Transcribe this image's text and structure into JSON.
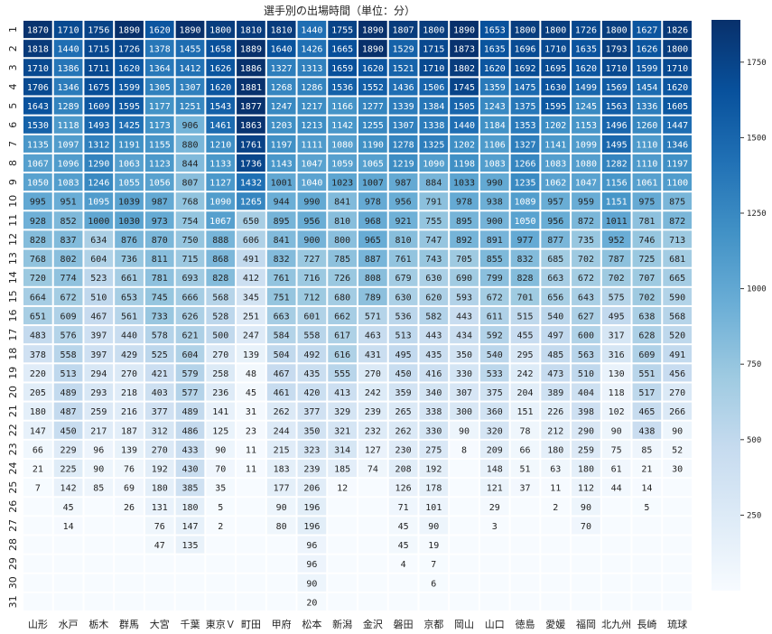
{
  "chart_data": {
    "type": "heatmap",
    "title": "選手別の出場時間（単位：分）",
    "x": [
      "山形",
      "水戸",
      "栃木",
      "群馬",
      "大宮",
      "千葉",
      "東京Ｖ",
      "町田",
      "甲府",
      "松本",
      "新潟",
      "金沢",
      "磐田",
      "京都",
      "岡山",
      "山口",
      "徳島",
      "愛媛",
      "福岡",
      "北九州",
      "長崎",
      "琉球"
    ],
    "y": [
      "1",
      "2",
      "3",
      "4",
      "5",
      "6",
      "7",
      "8",
      "9",
      "10",
      "11",
      "12",
      "13",
      "14",
      "15",
      "16",
      "17",
      "18",
      "19",
      "20",
      "21",
      "22",
      "23",
      "24",
      "25",
      "26",
      "27",
      "28",
      "29",
      "30",
      "31"
    ],
    "values": [
      [
        1870,
        1710,
        1756,
        1890,
        1620,
        1890,
        1800,
        1810,
        1810,
        1440,
        1755,
        1890,
        1807,
        1800,
        1890,
        1653,
        1800,
        1800,
        1726,
        1800,
        1627,
        1826
      ],
      [
        1818,
        1440,
        1715,
        1726,
        1378,
        1455,
        1658,
        1889,
        1640,
        1426,
        1665,
        1890,
        1529,
        1715,
        1873,
        1635,
        1696,
        1710,
        1635,
        1793,
        1626,
        1800
      ],
      [
        1710,
        1386,
        1711,
        1620,
        1364,
        1412,
        1626,
        1886,
        1327,
        1313,
        1659,
        1620,
        1521,
        1710,
        1802,
        1620,
        1692,
        1695,
        1620,
        1710,
        1599,
        1710
      ],
      [
        1706,
        1346,
        1675,
        1599,
        1305,
        1307,
        1620,
        1881,
        1268,
        1286,
        1536,
        1552,
        1436,
        1506,
        1745,
        1359,
        1475,
        1630,
        1499,
        1569,
        1454,
        1620
      ],
      [
        1643,
        1289,
        1609,
        1595,
        1177,
        1251,
        1543,
        1877,
        1247,
        1217,
        1166,
        1277,
        1339,
        1384,
        1505,
        1243,
        1375,
        1595,
        1245,
        1563,
        1336,
        1605
      ],
      [
        1530,
        1118,
        1493,
        1425,
        1173,
        906,
        1461,
        1863,
        1203,
        1213,
        1142,
        1255,
        1307,
        1338,
        1440,
        1184,
        1353,
        1202,
        1153,
        1496,
        1260,
        1447
      ],
      [
        1135,
        1097,
        1312,
        1191,
        1155,
        880,
        1210,
        1761,
        1197,
        1111,
        1080,
        1190,
        1278,
        1325,
        1202,
        1106,
        1327,
        1141,
        1099,
        1495,
        1110,
        1346
      ],
      [
        1067,
        1096,
        1290,
        1063,
        1123,
        844,
        1133,
        1736,
        1143,
        1047,
        1059,
        1065,
        1219,
        1090,
        1198,
        1083,
        1266,
        1083,
        1080,
        1282,
        1110,
        1197
      ],
      [
        1050,
        1083,
        1246,
        1055,
        1056,
        807,
        1127,
        1432,
        1001,
        1040,
        1023,
        1007,
        987,
        884,
        1033,
        990,
        1235,
        1062,
        1047,
        1156,
        1061,
        1100
      ],
      [
        995,
        951,
        1095,
        1039,
        987,
        768,
        1090,
        1265,
        944,
        990,
        841,
        978,
        956,
        791,
        978,
        938,
        1089,
        957,
        959,
        1151,
        975,
        875
      ],
      [
        928,
        852,
        1000,
        1030,
        973,
        754,
        1067,
        650,
        895,
        956,
        810,
        968,
        921,
        755,
        895,
        900,
        1050,
        956,
        872,
        1011,
        781,
        872
      ],
      [
        828,
        837,
        634,
        876,
        870,
        750,
        888,
        606,
        841,
        900,
        800,
        965,
        810,
        747,
        892,
        891,
        977,
        877,
        735,
        952,
        746,
        713
      ],
      [
        768,
        802,
        604,
        736,
        811,
        715,
        868,
        491,
        832,
        727,
        785,
        887,
        761,
        743,
        705,
        855,
        832,
        685,
        702,
        787,
        725,
        681
      ],
      [
        720,
        774,
        523,
        661,
        781,
        693,
        828,
        412,
        761,
        716,
        726,
        808,
        679,
        630,
        690,
        799,
        828,
        663,
        672,
        702,
        707,
        665
      ],
      [
        664,
        672,
        510,
        653,
        745,
        666,
        568,
        345,
        751,
        712,
        680,
        789,
        630,
        620,
        593,
        672,
        701,
        656,
        643,
        575,
        702,
        590
      ],
      [
        651,
        609,
        467,
        561,
        733,
        626,
        528,
        251,
        663,
        601,
        662,
        571,
        536,
        582,
        443,
        611,
        515,
        540,
        627,
        495,
        638,
        568
      ],
      [
        483,
        576,
        397,
        440,
        578,
        621,
        500,
        247,
        584,
        558,
        617,
        463,
        513,
        443,
        434,
        592,
        455,
        497,
        600,
        317,
        628,
        520
      ],
      [
        378,
        558,
        397,
        429,
        525,
        604,
        270,
        139,
        504,
        492,
        616,
        431,
        495,
        435,
        350,
        540,
        295,
        485,
        563,
        316,
        609,
        491
      ],
      [
        220,
        513,
        294,
        270,
        421,
        579,
        258,
        48,
        467,
        435,
        555,
        270,
        450,
        416,
        330,
        533,
        242,
        473,
        510,
        130,
        551,
        456
      ],
      [
        205,
        489,
        293,
        218,
        403,
        577,
        236,
        45,
        461,
        420,
        413,
        242,
        359,
        340,
        307,
        375,
        204,
        389,
        404,
        118,
        517,
        270
      ],
      [
        180,
        487,
        259,
        216,
        377,
        489,
        141,
        31,
        262,
        377,
        329,
        239,
        265,
        338,
        300,
        360,
        151,
        226,
        398,
        102,
        465,
        266
      ],
      [
        147,
        450,
        217,
        187,
        312,
        486,
        125,
        23,
        244,
        350,
        321,
        232,
        262,
        330,
        90,
        320,
        78,
        212,
        290,
        90,
        438,
        90
      ],
      [
        66,
        229,
        96,
        139,
        270,
        433,
        90,
        11,
        215,
        323,
        314,
        127,
        230,
        275,
        8,
        209,
        66,
        180,
        259,
        75,
        85,
        52
      ],
      [
        21,
        225,
        90,
        76,
        192,
        430,
        70,
        11,
        183,
        239,
        185,
        74,
        208,
        192,
        null,
        148,
        51,
        63,
        180,
        61,
        21,
        30
      ],
      [
        7,
        142,
        85,
        69,
        180,
        385,
        35,
        null,
        177,
        206,
        12,
        null,
        126,
        178,
        null,
        121,
        37,
        11,
        112,
        44,
        14,
        null
      ],
      [
        null,
        45,
        null,
        26,
        131,
        180,
        5,
        null,
        90,
        196,
        null,
        null,
        71,
        101,
        null,
        29,
        null,
        2,
        90,
        null,
        5,
        null
      ],
      [
        null,
        14,
        null,
        null,
        76,
        147,
        2,
        null,
        80,
        196,
        null,
        null,
        45,
        90,
        null,
        3,
        null,
        null,
        70,
        null,
        null,
        null
      ],
      [
        null,
        null,
        null,
        null,
        47,
        135,
        null,
        null,
        null,
        96,
        null,
        null,
        45,
        19,
        null,
        null,
        null,
        null,
        null,
        null,
        null,
        null
      ],
      [
        null,
        null,
        null,
        null,
        null,
        null,
        null,
        null,
        null,
        96,
        null,
        null,
        4,
        7,
        null,
        null,
        null,
        null,
        null,
        null,
        null,
        null
      ],
      [
        null,
        null,
        null,
        null,
        null,
        null,
        null,
        null,
        null,
        90,
        null,
        null,
        null,
        6,
        null,
        null,
        null,
        null,
        null,
        null,
        null,
        null
      ],
      [
        null,
        null,
        null,
        null,
        null,
        null,
        null,
        null,
        null,
        20,
        null,
        null,
        null,
        null,
        null,
        null,
        null,
        null,
        null,
        null,
        null,
        null
      ]
    ],
    "zlim": [
      0,
      1890
    ],
    "colorbar_ticks": [
      250,
      500,
      750,
      1000,
      1250,
      1500,
      1750
    ],
    "colormap": "Blues",
    "colors": {
      "low": "#f7fbff",
      "high": "#08306b",
      "gap": "#ffffff"
    }
  }
}
